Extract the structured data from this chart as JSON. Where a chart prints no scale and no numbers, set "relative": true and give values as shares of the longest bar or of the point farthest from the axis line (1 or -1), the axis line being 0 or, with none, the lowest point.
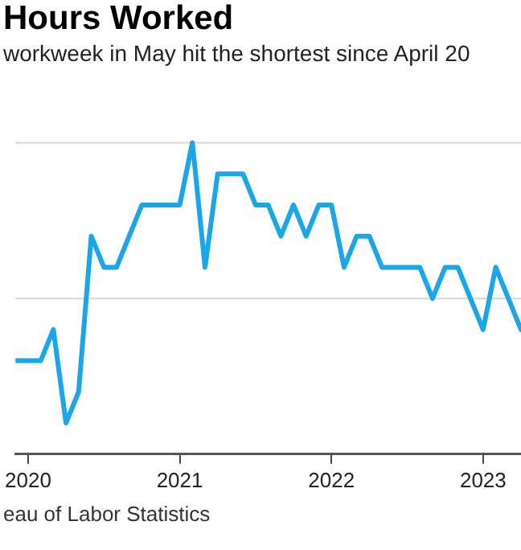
{
  "chart_data": {
    "type": "line",
    "title": "Hours Worked",
    "subtitle": "workweek in May hit the shortest since April 20",
    "annotations": [
      "eau of Labor Statistics"
    ],
    "relative": true,
    "ref_lines": [
      {
        "axis": "y",
        "value": 0.5,
        "color": "#d6d6d6"
      },
      {
        "axis": "y",
        "value": 1.0,
        "color": "#d6d6d6"
      }
    ],
    "legend": false,
    "marker": "none",
    "line_style": "solid",
    "xlim": [
      "2019-12",
      "2023-04"
    ],
    "xticks": [
      "2020",
      "2021",
      "2022",
      "2023"
    ],
    "x": [
      "2019-12",
      "2020-01",
      "2020-02",
      "2020-03",
      "2020-04",
      "2020-05",
      "2020-06",
      "2020-07",
      "2020-08",
      "2020-09",
      "2020-10",
      "2020-11",
      "2020-12",
      "2021-01",
      "2021-02",
      "2021-03",
      "2021-04",
      "2021-05",
      "2021-06",
      "2021-07",
      "2021-08",
      "2021-09",
      "2021-10",
      "2021-11",
      "2021-12",
      "2022-01",
      "2022-02",
      "2022-03",
      "2022-04",
      "2022-05",
      "2022-06",
      "2022-07",
      "2022-08",
      "2022-09",
      "2022-10",
      "2022-11",
      "2022-12",
      "2023-01",
      "2023-02",
      "2023-03",
      "2023-04"
    ],
    "series": [
      {
        "color": "#1ba6ea",
        "values": [
          0.3,
          0.3,
          0.3,
          0.4,
          0.1,
          0.2,
          0.7,
          0.6,
          0.6,
          0.7,
          0.8,
          0.8,
          0.8,
          0.8,
          1.0,
          0.6,
          0.9,
          0.9,
          0.9,
          0.8,
          0.8,
          0.7,
          0.8,
          0.7,
          0.8,
          0.8,
          0.6,
          0.7,
          0.7,
          0.6,
          0.6,
          0.6,
          0.6,
          0.5,
          0.6,
          0.6,
          0.5,
          0.4,
          0.6,
          0.5,
          0.4
        ]
      }
    ]
  }
}
